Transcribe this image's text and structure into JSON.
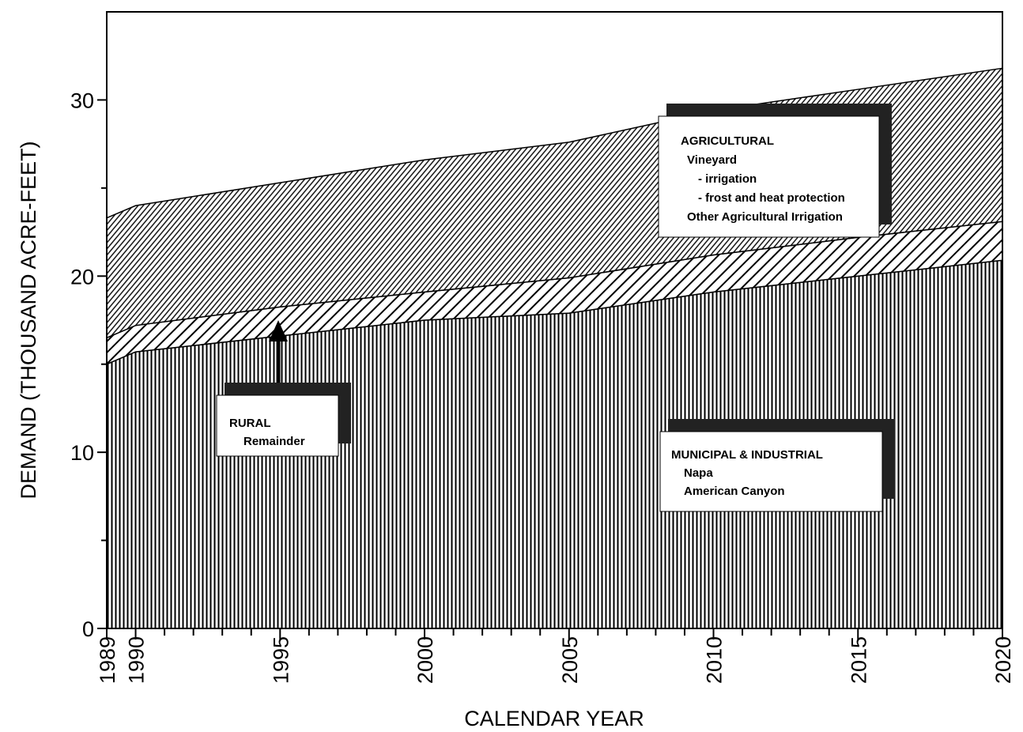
{
  "chart_data": {
    "type": "stacked_area",
    "x_label": "CALENDAR YEAR",
    "y_label": "DEMAND (THOUSAND ACRE-FEET)",
    "x": [
      1989,
      1990,
      1995,
      2000,
      2005,
      2010,
      2015,
      2020
    ],
    "series": [
      {
        "name": "MUNICIPAL & INDUSTRIAL",
        "color": "#000000",
        "values": [
          15.0,
          15.7,
          16.6,
          17.5,
          17.9,
          19.1,
          20.0,
          20.9
        ]
      },
      {
        "name": "RURAL",
        "color": "#000000",
        "values": [
          1.5,
          1.5,
          1.65,
          1.6,
          2.0,
          2.1,
          2.2,
          2.2
        ]
      },
      {
        "name": "AGRICULTURAL",
        "color": "#000000",
        "values": [
          6.8,
          6.8,
          7.05,
          7.5,
          7.7,
          8.2,
          8.4,
          8.7
        ]
      }
    ],
    "annotations": [
      {
        "lines": [
          "MUNICIPAL & INDUSTRIAL",
          "Napa",
          "American Canyon"
        ]
      },
      {
        "lines": [
          "RURAL",
          "Remainder"
        ]
      },
      {
        "lines": [
          "AGRICULTURAL",
          "Vineyard",
          "- irrigation",
          "- frost and heat protection",
          "Other Agricultural Irrigation"
        ]
      }
    ],
    "xlim": [
      1989,
      2020
    ],
    "xticks": [
      1989,
      1990,
      1995,
      2000,
      2005,
      2010,
      2015,
      2020
    ],
    "xminorticks": [
      1991,
      1992,
      1993,
      1994,
      1996,
      1997,
      1998,
      1999,
      2001,
      2002,
      2003,
      2004,
      2006,
      2007,
      2008,
      2009,
      2011,
      2012,
      2013,
      2014,
      2016,
      2017,
      2018,
      2019
    ],
    "ylim": [
      0,
      35
    ],
    "yticks": [
      0,
      10,
      20,
      30
    ],
    "yminorticks": [
      5,
      15,
      25
    ]
  }
}
